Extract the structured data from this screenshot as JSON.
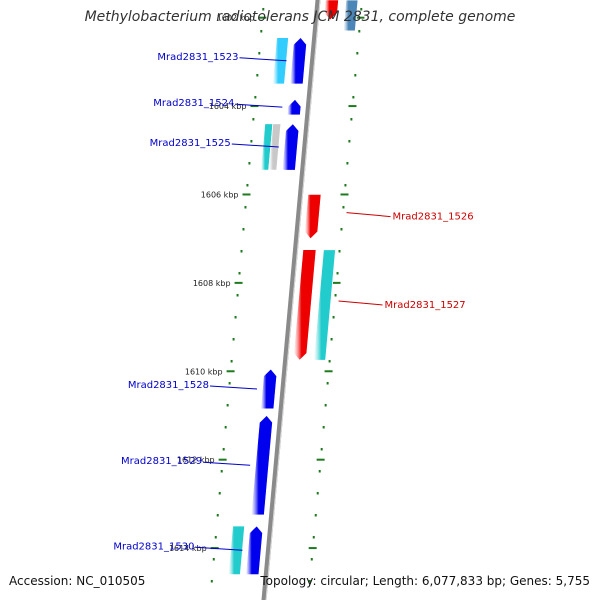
{
  "title": "Methylobacterium radiotolerans JCM 2831, complete genome",
  "footer": {
    "accession": "Accession: NC_010505",
    "summary": "Topology: circular; Length: 6,077,833 bp; Genes: 5,755"
  },
  "colors": {
    "background": "#ffffff",
    "backbone": "#8a8a8a",
    "tick": "#1e7a1e",
    "forward_label": "#0000cc",
    "reverse_label": "#cc0000",
    "forward_gene": "#0000ee",
    "reverse_gene": "#ee0000",
    "cyan": "#22cccc",
    "light_blue": "#33ccff",
    "steel_blue": "#4a86b8",
    "gray": "#c8c8c8"
  },
  "ticks": [
    {
      "kbp": 1602,
      "label": "1602 kbp"
    },
    {
      "kbp": 1604,
      "label": "1604 kbp"
    },
    {
      "kbp": 1606,
      "label": "1606 kbp"
    },
    {
      "kbp": 1608,
      "label": "1608 kbp"
    },
    {
      "kbp": 1610,
      "label": "1610 kbp"
    },
    {
      "kbp": 1612,
      "label": "1612 kbp"
    },
    {
      "kbp": 1614,
      "label": "1614 kbp"
    }
  ],
  "genes": [
    {
      "name": "Mrad2831_1523",
      "strand": "+",
      "start_kbp": 1602.45,
      "end_kbp": 1603.5,
      "color": "forward_gene",
      "labeled": true
    },
    {
      "name": "Mrad2831_1524",
      "strand": "+",
      "start_kbp": 1603.85,
      "end_kbp": 1604.2,
      "color": "forward_gene",
      "labeled": true
    },
    {
      "name": "Mrad2831_1525",
      "strand": "+",
      "start_kbp": 1604.4,
      "end_kbp": 1605.45,
      "color": "forward_gene",
      "labeled": true
    },
    {
      "name": "Mrad2831_1526",
      "strand": "-",
      "start_kbp": 1606.0,
      "end_kbp": 1607.0,
      "color": "reverse_gene",
      "labeled": true
    },
    {
      "name": "Mrad2831_1527",
      "strand": "-",
      "start_kbp": 1607.25,
      "end_kbp": 1609.75,
      "color": "reverse_gene",
      "labeled": true
    },
    {
      "name": "Mrad2831_1528",
      "strand": "+",
      "start_kbp": 1609.95,
      "end_kbp": 1610.85,
      "color": "forward_gene",
      "labeled": true
    },
    {
      "name": "Mrad2831_1529",
      "strand": "+",
      "start_kbp": 1611.0,
      "end_kbp": 1613.25,
      "color": "forward_gene",
      "labeled": true
    },
    {
      "name": "Mrad2831_1530",
      "strand": "+",
      "start_kbp": 1613.5,
      "end_kbp": 1614.6,
      "color": "forward_gene",
      "labeled": true
    },
    {
      "name": "upper-reverse-gene",
      "strand": "-",
      "start_kbp": 1601.6,
      "end_kbp": 1602.05,
      "color": "reverse_gene",
      "labeled": false
    }
  ],
  "features": [
    {
      "name": "upper-steel-feature",
      "side": "-",
      "start_kbp": 1601.6,
      "end_kbp": 1602.3,
      "color": "steel_blue",
      "arrow": false
    },
    {
      "name": "feature-1523",
      "side": "+",
      "start_kbp": 1602.45,
      "end_kbp": 1603.5,
      "color": "light_blue",
      "arrow": false
    },
    {
      "name": "feature-1525-cyan",
      "side": "+",
      "start_kbp": 1604.4,
      "end_kbp": 1605.45,
      "color": "cyan",
      "arrow": false,
      "lane_offset": -6
    },
    {
      "name": "feature-1525-gray",
      "side": "+",
      "start_kbp": 1604.4,
      "end_kbp": 1605.45,
      "color": "gray",
      "arrow": false,
      "lane_offset": 2
    },
    {
      "name": "feature-1527",
      "side": "-",
      "start_kbp": 1607.25,
      "end_kbp": 1609.75,
      "color": "cyan",
      "arrow": false
    },
    {
      "name": "feature-1530",
      "side": "+",
      "start_kbp": 1613.5,
      "end_kbp": 1614.6,
      "color": "cyan",
      "arrow": false
    }
  ]
}
